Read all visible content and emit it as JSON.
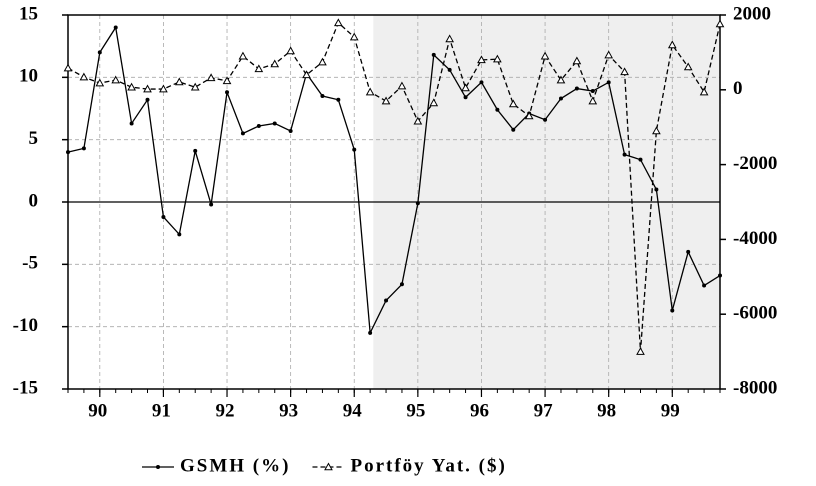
{
  "chart_data": {
    "type": "line",
    "x": [
      1989.5,
      1989.75,
      1990,
      1990.25,
      1990.5,
      1990.75,
      1991,
      1991.25,
      1991.5,
      1991.75,
      1992,
      1992.25,
      1992.5,
      1992.75,
      1993,
      1993.25,
      1993.5,
      1993.75,
      1994,
      1994.25,
      1994.5,
      1994.75,
      1995,
      1995.25,
      1995.5,
      1995.75,
      1996,
      1996.25,
      1996.5,
      1996.75,
      1997,
      1997.25,
      1997.5,
      1997.75,
      1998,
      1998.25,
      1998.5,
      1998.75,
      1999,
      1999.25,
      1999.5,
      1999.75
    ],
    "series": [
      {
        "name": "GSMH (%)",
        "color": "#000000",
        "style": "solid",
        "marker": "dot",
        "values": [
          4.0,
          4.3,
          12.0,
          14.0,
          6.3,
          8.2,
          -1.2,
          -2.6,
          4.1,
          -0.2,
          8.8,
          5.5,
          6.1,
          6.3,
          5.7,
          10.3,
          8.5,
          8.2,
          4.2,
          -10.5,
          -7.9,
          -6.6,
          -0.1,
          11.8,
          10.6,
          8.4,
          9.6,
          7.4,
          5.8,
          7.1,
          6.6,
          8.3,
          9.1,
          8.9,
          9.6,
          3.8,
          3.4,
          1.0,
          -8.7,
          -4.0,
          -6.7,
          -5.9
        ]
      },
      {
        "name": "Portföy Yat. ($)",
        "color": "#000000",
        "style": "dashed",
        "marker": "triangle",
        "axis": "y2",
        "values": [
          580,
          340,
          180,
          260,
          70,
          20,
          20,
          210,
          70,
          320,
          240,
          900,
          560,
          690,
          1040,
          400,
          740,
          1790,
          1410,
          -60,
          -300,
          100,
          -840,
          -350,
          1360,
          50,
          800,
          820,
          -380,
          -700,
          900,
          260,
          770,
          -300,
          930,
          480,
          -7000,
          -1100,
          1200,
          610,
          -60,
          1760
        ]
      }
    ],
    "xlim": [
      1989.5,
      1999.75
    ],
    "xticks": [
      {
        "value": 1990,
        "label": "90"
      },
      {
        "value": 1991,
        "label": "91"
      },
      {
        "value": 1992,
        "label": "92"
      },
      {
        "value": 1993,
        "label": "93"
      },
      {
        "value": 1994,
        "label": "94"
      },
      {
        "value": 1995,
        "label": "95"
      },
      {
        "value": 1996,
        "label": "96"
      },
      {
        "value": 1997,
        "label": "97"
      },
      {
        "value": 1998,
        "label": "98"
      },
      {
        "value": 1999,
        "label": "99"
      }
    ],
    "ylim": [
      -15,
      15
    ],
    "yticks": [
      -15,
      -10,
      -5,
      0,
      5,
      10,
      15
    ],
    "y2lim": [
      -8000,
      2000
    ],
    "y2ticks": [
      -8000,
      -6000,
      -4000,
      -2000,
      0,
      2000
    ],
    "shaded_x": [
      1994.3,
      1999.75
    ],
    "grid": true,
    "legend": "bottom"
  }
}
